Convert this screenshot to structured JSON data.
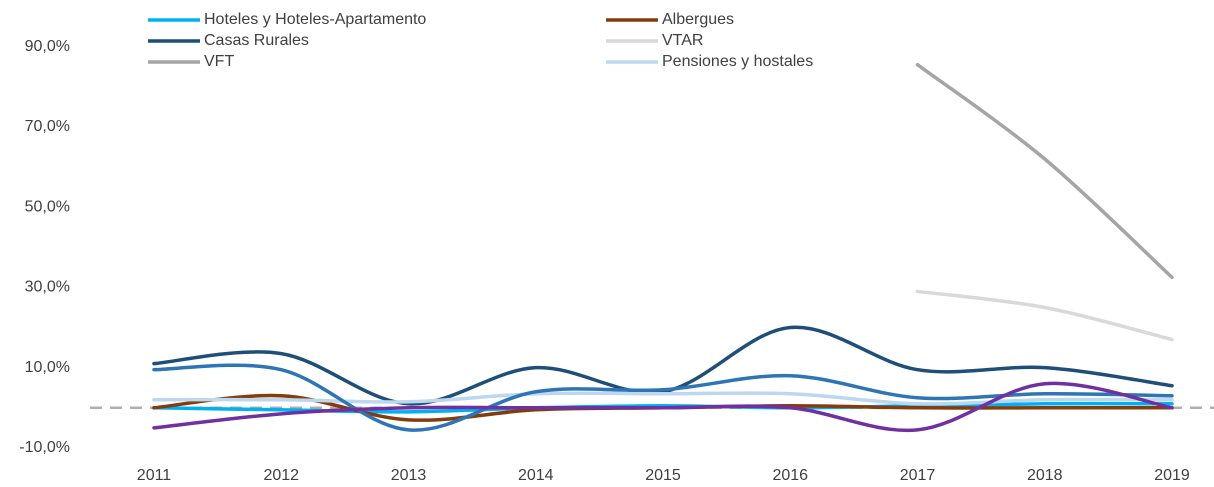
{
  "chart_data": {
    "type": "line",
    "categories": [
      "2011",
      "2012",
      "2013",
      "2014",
      "2015",
      "2016",
      "2017",
      "2018",
      "2019"
    ],
    "series": [
      {
        "name": "Hoteles y Hoteles-Apartamento",
        "color": "#00b0f0",
        "values": [
          0,
          -0.5,
          -1,
          0,
          0.5,
          0,
          0.5,
          1,
          1
        ]
      },
      {
        "name": "Albergues",
        "color": "#843c0c",
        "values": [
          0,
          3,
          -3,
          -0.5,
          0,
          0.5,
          0,
          0,
          0
        ]
      },
      {
        "name": "Casas Rurales",
        "color": "#1f4e79",
        "values": [
          11,
          13.5,
          1,
          10,
          4,
          20,
          9.5,
          10,
          5.5
        ]
      },
      {
        "name": "VTAR",
        "color": "#d9d9d9",
        "values": [
          null,
          null,
          null,
          null,
          null,
          null,
          29,
          25,
          17
        ]
      },
      {
        "name": "VFT",
        "color": "#a5a5a5",
        "values": [
          null,
          null,
          null,
          null,
          null,
          null,
          85.5,
          62,
          32.5
        ]
      },
      {
        "name": "Pensiones y hostales",
        "color": "#bdd7ee",
        "values": [
          2,
          2,
          1.5,
          3.5,
          3.5,
          3.5,
          1,
          2,
          2
        ]
      },
      {
        "color": "#2e75b6",
        "values": [
          9.5,
          9.5,
          -5.5,
          4,
          4.5,
          8,
          2.5,
          3.5,
          3
        ]
      },
      {
        "color": "#7030a0",
        "values": [
          -5,
          -1.5,
          0,
          0,
          0,
          0,
          -5.5,
          6,
          0
        ]
      }
    ],
    "ylim": [
      -15,
      100
    ],
    "yticks": [
      {
        "value": 90,
        "label": "90,0%"
      },
      {
        "value": 70,
        "label": "70,0%"
      },
      {
        "value": 50,
        "label": "50,0%"
      },
      {
        "value": 30,
        "label": "30,0%"
      },
      {
        "value": 10,
        "label": "10,0%"
      },
      {
        "value": -10,
        "label": "-10,0%"
      }
    ],
    "grid": false
  }
}
